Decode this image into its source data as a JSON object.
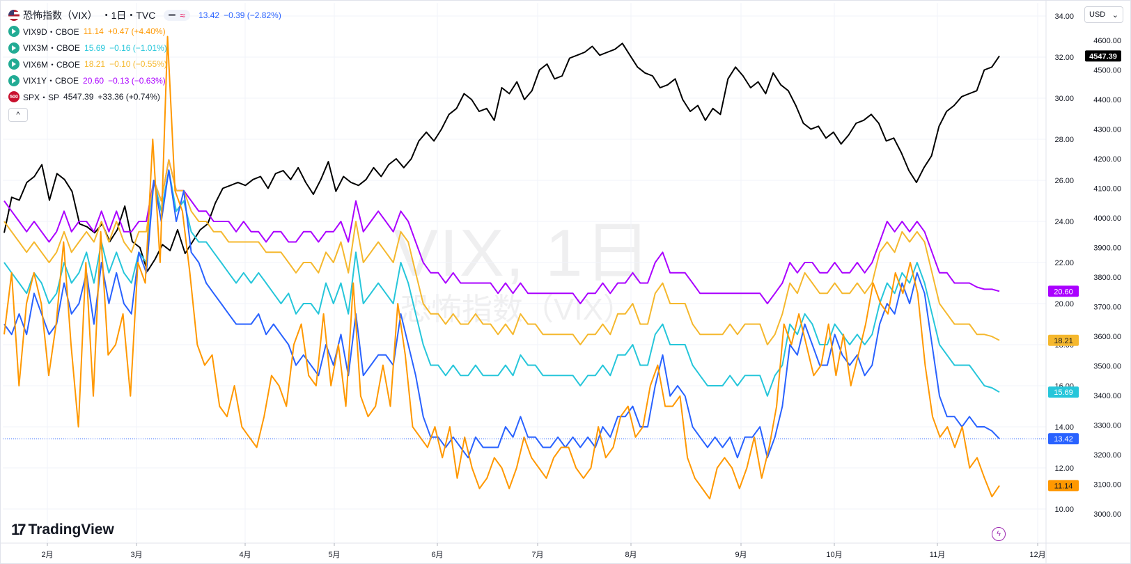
{
  "legend": {
    "main": {
      "name": "恐怖指数（VIX）",
      "interval": "・1日・TVC",
      "compare_glyph": "≈",
      "value": "13.42",
      "change": "−0.39 (−2.82%)",
      "color": "#2962ff"
    },
    "rows": [
      {
        "name": "VIX9D・CBOE",
        "value": "11.14",
        "change": "+0.47 (+4.40%)",
        "color": "#ff9800",
        "icon": "play-icon"
      },
      {
        "name": "VIX3M・CBOE",
        "value": "15.69",
        "change": "−0.16 (−1.01%)",
        "color": "#26c6da",
        "icon": "play-icon"
      },
      {
        "name": "VIX6M・CBOE",
        "value": "18.21",
        "change": "−0.10 (−0.55%)",
        "color": "#f5b82e",
        "icon": "play-icon"
      },
      {
        "name": "VIX1Y・CBOE",
        "value": "20.60",
        "change": "−0.13 (−0.63%)",
        "color": "#aa00ff",
        "icon": "play-icon"
      },
      {
        "name": "SPX・SP",
        "value": "4547.39",
        "change": "+33.36 (+0.74%)",
        "color": "#131722",
        "icon": "sp500-icon",
        "icon_text": "500"
      }
    ],
    "collapse_glyph": "^"
  },
  "watermark": {
    "line1": "VIX, 1日",
    "line2": "恐怖指数（VIX）"
  },
  "logo": {
    "text": "TradingView",
    "mark": "17"
  },
  "currency_button": {
    "label": "USD",
    "glyph": "⌄"
  },
  "bolt_glyph": "ϟ",
  "chart_data": {
    "type": "line",
    "x_ticks": [
      "2月",
      "3月",
      "4月",
      "5月",
      "6月",
      "7月",
      "8月",
      "9月",
      "10月",
      "11月",
      "12月"
    ],
    "left_axis": {
      "ticks": [
        "34.00",
        "32.00",
        "30.00",
        "28.00",
        "26.00",
        "24.00",
        "22.00",
        "20.00",
        "18.00",
        "16.00",
        "14.00",
        "12.00",
        "10.00"
      ],
      "range": [
        9,
        35
      ]
    },
    "right_axis": {
      "ticks": [
        "4600.00",
        "4500.00",
        "4400.00",
        "4300.00",
        "4200.00",
        "4100.00",
        "4000.00",
        "3900.00",
        "3800.00",
        "3700.00",
        "3600.00",
        "3500.00",
        "3400.00",
        "3300.00",
        "3200.00",
        "3100.00",
        "3000.00"
      ]
    },
    "series": [
      {
        "name": "VIX9D",
        "color": "#ff9800",
        "last_label": "11.14",
        "values": [
          18.5,
          21.5,
          16.0,
          20.0,
          21.5,
          20.0,
          16.5,
          19.0,
          23.0,
          18.0,
          14.0,
          22.0,
          15.5,
          23.5,
          17.5,
          18.0,
          19.5,
          15.5,
          22.0,
          21.0,
          28.0,
          22.0,
          33.0,
          25.5,
          24.5,
          21.5,
          18.0,
          17.0,
          17.5,
          15.0,
          14.5,
          16.0,
          14.0,
          13.5,
          13.0,
          14.5,
          16.5,
          16.0,
          15.0,
          18.0,
          19.0,
          16.5,
          16.0,
          19.5,
          16.0,
          18.0,
          15.0,
          21.0,
          15.5,
          14.5,
          15.0,
          17.0,
          15.0,
          20.0,
          17.5,
          14.0,
          13.5,
          13.0,
          14.0,
          12.5,
          14.0,
          11.5,
          13.5,
          12.0,
          11.0,
          11.5,
          12.5,
          12.0,
          11.0,
          12.0,
          13.5,
          12.5,
          12.0,
          11.5,
          12.5,
          13.0,
          13.0,
          12.0,
          11.5,
          12.0,
          14.0,
          12.5,
          13.0,
          14.5,
          15.0,
          13.5,
          14.0,
          16.0,
          17.0,
          15.0,
          15.0,
          15.5,
          12.5,
          11.5,
          11.0,
          10.5,
          12.0,
          12.5,
          12.0,
          11.0,
          12.0,
          13.5,
          11.5,
          13.0,
          15.0,
          19.0,
          18.0,
          19.5,
          18.0,
          16.5,
          17.0,
          19.0,
          16.5,
          18.5,
          16.0,
          17.5,
          19.0,
          21.0,
          20.0,
          19.5,
          21.5,
          20.5,
          22.0,
          20.5,
          17.0,
          14.5,
          13.5,
          14.0,
          13.0,
          14.0,
          12.0,
          12.5,
          11.5,
          10.6,
          11.14
        ]
      },
      {
        "name": "VIX",
        "color": "#2962ff",
        "last_label": "13.42",
        "values": [
          19.0,
          18.5,
          19.5,
          18.5,
          20.5,
          19.5,
          18.5,
          19.0,
          21.0,
          19.5,
          20.0,
          21.5,
          19.0,
          22.0,
          20.0,
          21.5,
          20.0,
          19.5,
          22.5,
          21.5,
          26.0,
          24.0,
          26.5,
          24.0,
          25.5,
          22.5,
          22.0,
          21.0,
          20.5,
          20.0,
          19.5,
          19.0,
          19.0,
          19.0,
          19.5,
          18.5,
          19.0,
          18.5,
          18.0,
          17.0,
          17.5,
          17.0,
          16.5,
          18.0,
          17.0,
          18.5,
          16.5,
          19.5,
          16.5,
          17.0,
          17.5,
          17.5,
          17.0,
          19.5,
          18.0,
          16.5,
          14.5,
          13.5,
          13.5,
          13.0,
          13.5,
          13.0,
          12.5,
          13.5,
          13.0,
          13.0,
          13.0,
          14.0,
          13.5,
          14.5,
          13.5,
          13.5,
          13.0,
          13.0,
          13.5,
          13.0,
          13.5,
          13.0,
          13.5,
          13.0,
          14.0,
          13.5,
          14.5,
          14.5,
          15.0,
          14.0,
          14.0,
          16.0,
          17.5,
          15.5,
          16.0,
          15.5,
          14.0,
          13.5,
          13.0,
          13.5,
          13.0,
          13.5,
          12.5,
          13.5,
          13.5,
          14.0,
          12.5,
          13.5,
          15.0,
          18.0,
          17.5,
          19.0,
          18.0,
          17.0,
          17.0,
          18.5,
          17.5,
          17.0,
          17.5,
          16.5,
          17.0,
          19.0,
          20.0,
          19.5,
          21.0,
          20.0,
          21.5,
          20.5,
          18.0,
          15.5,
          14.5,
          14.5,
          14.0,
          14.5,
          14.0,
          14.0,
          13.8,
          13.42
        ]
      },
      {
        "name": "VIX3M",
        "color": "#26c6da",
        "last_label": "15.69",
        "values": [
          22.0,
          21.5,
          21.0,
          20.5,
          21.5,
          21.0,
          20.0,
          20.5,
          22.0,
          21.0,
          21.5,
          22.5,
          21.0,
          23.0,
          21.5,
          22.5,
          21.5,
          21.0,
          22.5,
          22.0,
          26.0,
          24.5,
          26.5,
          24.5,
          25.0,
          23.5,
          23.0,
          23.0,
          22.5,
          22.0,
          21.5,
          21.0,
          21.5,
          21.0,
          21.5,
          21.0,
          20.5,
          20.0,
          20.5,
          19.5,
          20.0,
          20.0,
          19.5,
          21.0,
          20.0,
          21.0,
          19.5,
          22.5,
          20.0,
          20.5,
          21.0,
          20.5,
          20.0,
          22.0,
          21.0,
          19.5,
          18.0,
          17.0,
          17.0,
          16.5,
          17.0,
          16.5,
          16.5,
          17.0,
          16.5,
          16.5,
          16.5,
          17.0,
          16.5,
          17.5,
          17.0,
          17.0,
          16.5,
          16.5,
          16.5,
          16.5,
          16.5,
          16.0,
          16.5,
          16.5,
          17.0,
          16.5,
          17.5,
          17.5,
          18.0,
          17.0,
          17.0,
          18.5,
          19.0,
          18.0,
          18.0,
          18.0,
          17.0,
          16.5,
          16.0,
          16.0,
          16.0,
          16.5,
          16.0,
          16.5,
          16.5,
          16.5,
          15.5,
          16.5,
          17.0,
          19.0,
          18.5,
          19.5,
          19.0,
          18.0,
          18.0,
          19.0,
          18.5,
          18.0,
          18.5,
          18.0,
          18.5,
          20.0,
          21.0,
          20.5,
          21.5,
          21.0,
          22.0,
          21.0,
          19.5,
          18.0,
          17.5,
          17.0,
          17.0,
          17.0,
          16.5,
          16.0,
          15.9,
          15.69
        ]
      },
      {
        "name": "VIX6M",
        "color": "#f5b82e",
        "last_label": "18.21",
        "values": [
          24.0,
          23.5,
          23.0,
          22.5,
          23.0,
          22.5,
          22.0,
          22.5,
          23.5,
          22.5,
          23.0,
          23.5,
          23.0,
          24.0,
          23.0,
          24.0,
          23.0,
          22.5,
          23.5,
          23.5,
          26.0,
          25.0,
          27.0,
          25.5,
          25.5,
          24.5,
          24.0,
          24.0,
          23.5,
          23.5,
          23.0,
          23.0,
          23.0,
          23.0,
          23.0,
          22.5,
          22.5,
          22.5,
          22.0,
          21.5,
          22.0,
          22.0,
          21.5,
          22.5,
          22.0,
          23.0,
          21.5,
          24.0,
          22.0,
          22.5,
          23.0,
          22.5,
          22.0,
          23.5,
          23.0,
          21.5,
          20.0,
          19.5,
          19.5,
          19.0,
          19.5,
          19.0,
          19.0,
          19.5,
          19.0,
          19.0,
          18.5,
          19.0,
          18.5,
          19.5,
          19.0,
          19.0,
          18.5,
          18.5,
          18.5,
          18.5,
          18.5,
          18.0,
          18.5,
          18.5,
          19.0,
          18.5,
          19.5,
          19.5,
          20.0,
          19.0,
          19.0,
          20.5,
          21.0,
          20.0,
          20.0,
          20.0,
          19.0,
          18.5,
          18.5,
          18.5,
          18.5,
          19.0,
          18.5,
          19.0,
          19.0,
          19.0,
          18.0,
          18.5,
          19.5,
          21.0,
          20.5,
          21.5,
          21.0,
          20.5,
          20.5,
          21.0,
          20.5,
          20.5,
          21.0,
          20.5,
          21.0,
          22.5,
          23.0,
          22.5,
          23.5,
          23.0,
          23.5,
          23.0,
          21.5,
          20.0,
          19.5,
          19.0,
          19.0,
          19.0,
          18.5,
          18.5,
          18.4,
          18.21
        ]
      },
      {
        "name": "VIX1Y",
        "color": "#aa00ff",
        "last_label": "20.60",
        "values": [
          25.0,
          24.5,
          24.0,
          23.5,
          24.0,
          23.5,
          23.0,
          23.5,
          24.5,
          23.5,
          24.0,
          24.0,
          23.5,
          24.5,
          23.5,
          24.5,
          23.5,
          23.5,
          24.0,
          24.0,
          26.0,
          25.0,
          27.0,
          25.5,
          25.5,
          25.0,
          24.5,
          24.5,
          24.0,
          24.0,
          24.0,
          23.5,
          24.0,
          23.5,
          23.5,
          23.0,
          23.5,
          23.5,
          23.0,
          23.0,
          23.5,
          23.5,
          23.0,
          23.5,
          23.5,
          24.0,
          23.0,
          25.0,
          23.5,
          24.0,
          24.5,
          24.0,
          23.5,
          24.5,
          24.0,
          23.0,
          22.0,
          21.5,
          21.5,
          21.0,
          21.5,
          21.0,
          21.0,
          21.0,
          21.0,
          21.0,
          20.5,
          21.0,
          20.5,
          21.0,
          20.5,
          20.5,
          20.5,
          20.5,
          20.5,
          20.5,
          20.5,
          20.0,
          20.5,
          20.5,
          21.0,
          20.5,
          21.0,
          21.0,
          21.5,
          21.0,
          21.0,
          22.0,
          22.5,
          21.5,
          21.5,
          21.5,
          21.0,
          20.5,
          20.5,
          20.5,
          20.5,
          20.5,
          20.5,
          20.5,
          20.5,
          20.5,
          20.0,
          20.5,
          21.0,
          22.0,
          21.5,
          22.0,
          22.0,
          21.5,
          21.5,
          22.0,
          21.5,
          21.5,
          22.0,
          21.5,
          22.0,
          23.0,
          24.0,
          23.5,
          24.0,
          23.5,
          24.0,
          23.5,
          22.5,
          21.5,
          21.5,
          21.0,
          21.0,
          21.0,
          20.8,
          20.7,
          20.7,
          20.6
        ]
      },
      {
        "name": "SPX",
        "color": "#000000",
        "axis": "right",
        "last_label": "4547.39",
        "values": [
          3950,
          4070,
          4060,
          4120,
          4140,
          4180,
          4060,
          4150,
          4130,
          4090,
          3980,
          3970,
          3950,
          3980,
          3920,
          3960,
          4040,
          3920,
          3900,
          3820,
          3860,
          3910,
          3890,
          3960,
          3880,
          3920,
          3960,
          3980,
          4050,
          4100,
          4110,
          4120,
          4110,
          4130,
          4140,
          4100,
          4150,
          4160,
          4130,
          4170,
          4120,
          4080,
          4130,
          4190,
          4090,
          4140,
          4120,
          4110,
          4130,
          4170,
          4140,
          4180,
          4200,
          4170,
          4200,
          4260,
          4290,
          4260,
          4300,
          4350,
          4370,
          4420,
          4400,
          4360,
          4370,
          4330,
          4440,
          4420,
          4460,
          4400,
          4430,
          4500,
          4520,
          4470,
          4480,
          4540,
          4550,
          4560,
          4580,
          4550,
          4560,
          4570,
          4590,
          4550,
          4510,
          4490,
          4480,
          4440,
          4450,
          4470,
          4400,
          4360,
          4380,
          4330,
          4370,
          4350,
          4470,
          4510,
          4480,
          4440,
          4460,
          4420,
          4490,
          4450,
          4430,
          4380,
          4320,
          4300,
          4310,
          4270,
          4290,
          4250,
          4280,
          4320,
          4330,
          4350,
          4320,
          4260,
          4270,
          4220,
          4160,
          4120,
          4170,
          4210,
          4310,
          4360,
          4380,
          4410,
          4420,
          4430,
          4500,
          4510,
          4547.39
        ]
      }
    ]
  }
}
